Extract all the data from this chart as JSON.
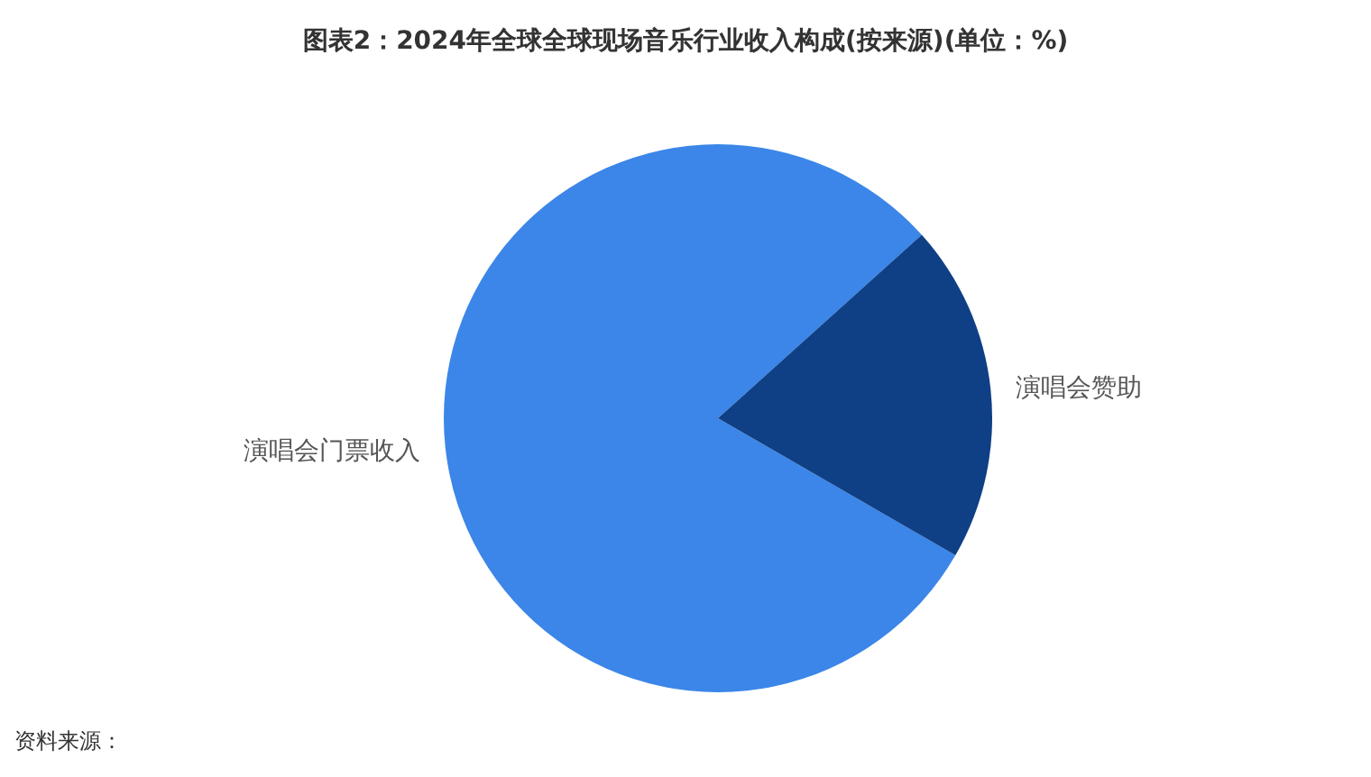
{
  "chart_data": {
    "type": "pie",
    "title": "图表2：2024年全球全球现场音乐行业收入构成(按来源)(单位：%)",
    "categories": [
      "演唱会门票收入",
      "演唱会赞助"
    ],
    "values": [
      80,
      20
    ],
    "colors": [
      "#3b86e8",
      "#0f3f85"
    ],
    "annotations": [
      "资料来源："
    ]
  }
}
